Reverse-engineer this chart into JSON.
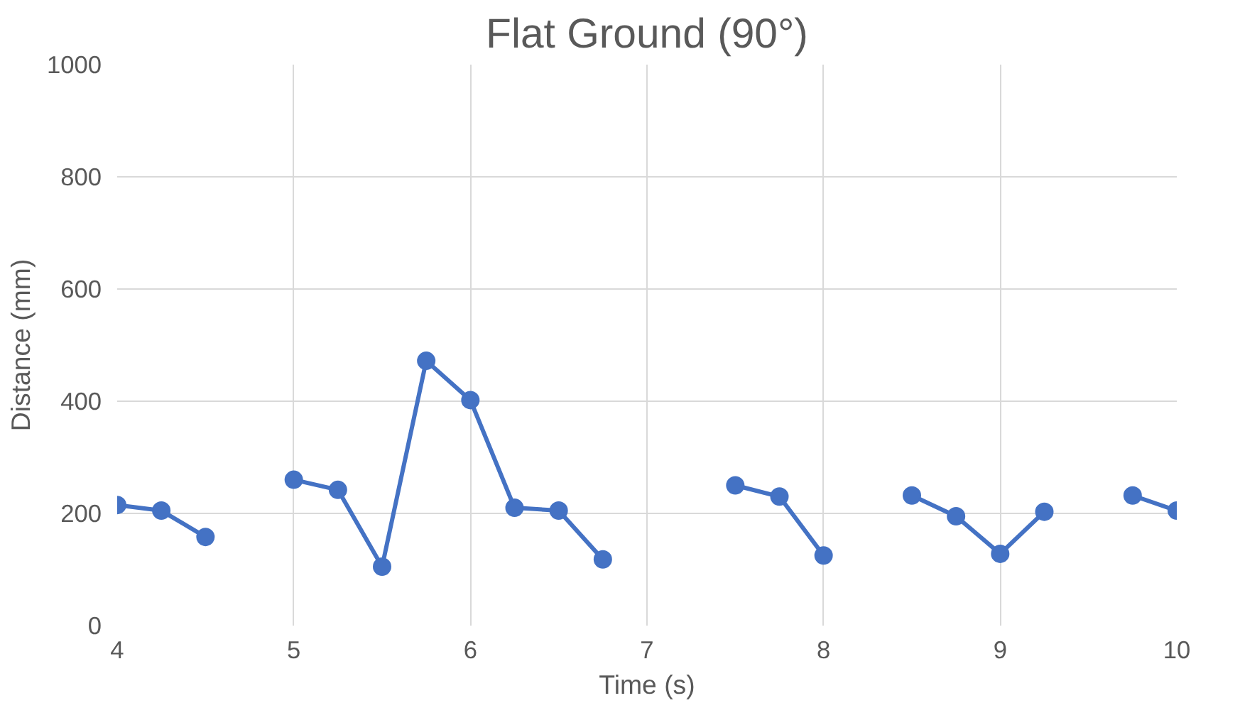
{
  "chart_data": {
    "type": "line",
    "title": "Flat Ground (90°)",
    "xlabel": "Time (s)",
    "ylabel": "Distance (mm)",
    "x": [
      4,
      4.25,
      4.5,
      4.75,
      5,
      5.25,
      5.5,
      5.75,
      6,
      6.25,
      6.5,
      6.75,
      7,
      7.25,
      7.5,
      7.75,
      8,
      8.25,
      8.5,
      8.75,
      9,
      9.25,
      9.5,
      9.75,
      10
    ],
    "series": [
      {
        "color": "#4472c4",
        "values": [
          215,
          205,
          158,
          null,
          260,
          242,
          105,
          472,
          402,
          210,
          205,
          118,
          null,
          null,
          250,
          230,
          125,
          null,
          232,
          195,
          128,
          203,
          null,
          232,
          205
        ]
      }
    ],
    "xlim": [
      4,
      10
    ],
    "xticks": [
      4,
      5,
      6,
      7,
      8,
      9,
      10
    ],
    "ylim": [
      0,
      1000
    ],
    "yticks": [
      0,
      200,
      400,
      600,
      800,
      1000
    ],
    "grid": true,
    "marker": "circle",
    "line_style": "solid"
  }
}
